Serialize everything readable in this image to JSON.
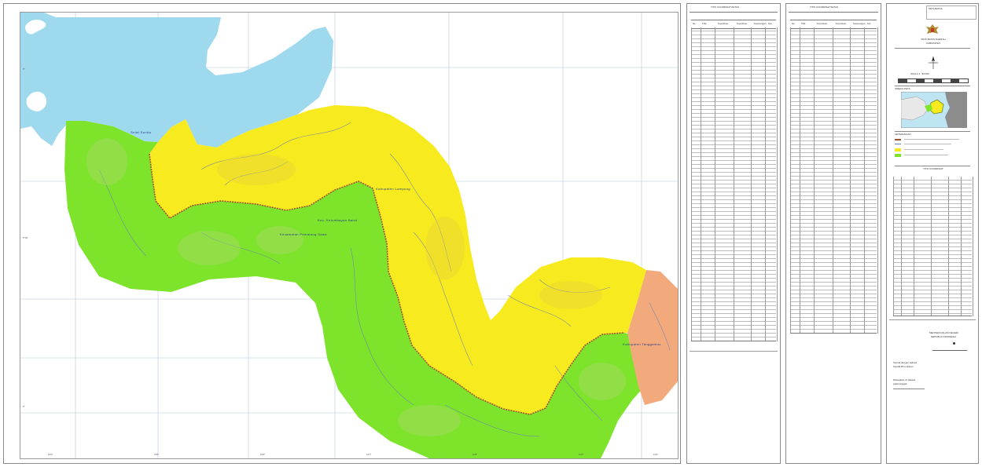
{
  "map": {
    "sea_label": "Selat Sunda",
    "labels": {
      "yellow_zone": "Kabupaten Lampung",
      "green_zone_a": "Kec. Kelumbayan Barat",
      "green_zone_b": "Kecamatan Pematang Sawa",
      "orange_zone": "Kabupaten Tanggamus"
    },
    "x_ticks": [
      "104°",
      "105°",
      "106°",
      "107°",
      "108°",
      "109°",
      "110°"
    ],
    "y_ticks": [
      "5°",
      "5°30'",
      "6°"
    ],
    "colors": {
      "sea": "#9fd9ee",
      "yellow": "#f7ea1e",
      "green": "#7ee32b",
      "orange": "#f2aa7d",
      "river": "#6a7fb8",
      "boundary": "#a0522d",
      "grid": "#c9d6e3"
    }
  },
  "table1": {
    "title": "TITIK KOORDINAT BATAS",
    "columns": [
      "No",
      "Titik",
      "Koordinat",
      "Koordinat",
      "Keterangan",
      "Ket"
    ]
  },
  "table2": {
    "title": "TITIK KOORDINAT BATAS",
    "columns": [
      "No",
      "Titik",
      "Koordinat",
      "Koordinat",
      "Keterangan",
      "Ket"
    ]
  },
  "legend": {
    "header": "PETA BATAS",
    "title": "PETA BATAS DAERAH",
    "subtitle": "KABUPATEN",
    "scale": "SKALA 1 : 50.000",
    "index_title": "INDEKS PETA",
    "legend_title": "KETERANGAN",
    "table_title": "TITIK KOORDINAT",
    "signatory_1": "MENTERI DALAM NEGERI",
    "signatory_2": "REPUBLIK INDONESIA",
    "note_1": "Sesuai dengan aslinya",
    "note_2": "Kepala Biro Hukum",
    "note_3": "Ditetapkan di Jakarta",
    "note_4": "pada tanggal"
  }
}
